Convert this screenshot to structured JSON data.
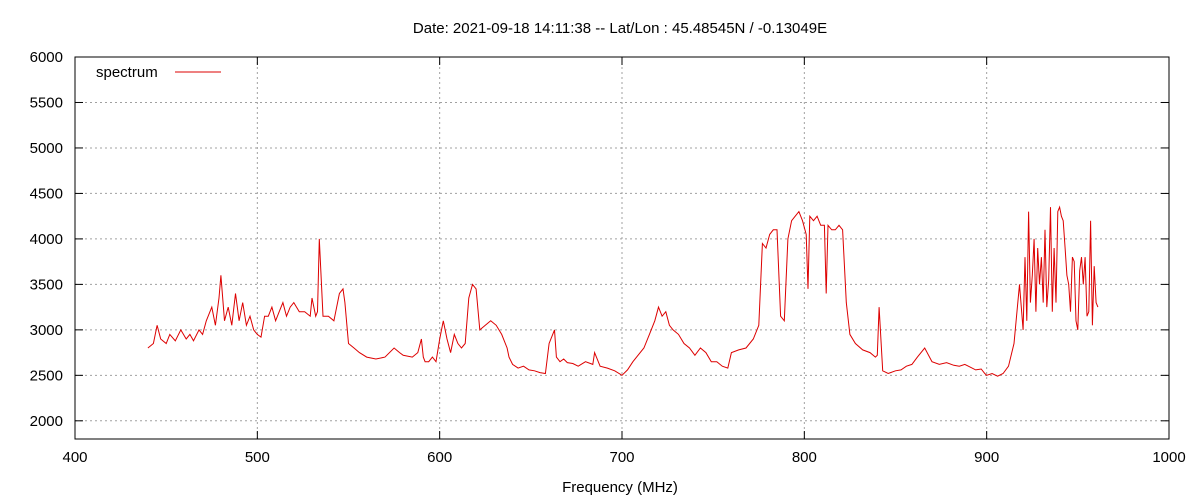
{
  "chart_data": {
    "type": "line",
    "title": "Date: 2021-09-18 14:11:38  --  Lat/Lon : 45.48545N / -0.13049E",
    "xlabel": "Frequency (MHz)",
    "ylabel": "",
    "xlim": [
      400,
      1000
    ],
    "ylim": [
      1800,
      6000
    ],
    "xticks": [
      400,
      500,
      600,
      700,
      800,
      900,
      1000
    ],
    "yticks": [
      2000,
      2500,
      3000,
      3500,
      4000,
      4500,
      5000,
      5500,
      6000
    ],
    "grid": true,
    "legend_position": "top-left",
    "series": [
      {
        "name": "spectrum",
        "color": "#dd0000",
        "x": [
          440,
          443,
          445,
          447,
          450,
          452,
          455,
          458,
          461,
          463,
          465,
          468,
          470,
          472,
          475,
          477,
          479,
          480,
          482,
          484,
          486,
          488,
          490,
          492,
          494,
          496,
          498,
          500,
          502,
          504,
          506,
          508,
          510,
          512,
          514,
          516,
          518,
          520,
          523,
          526,
          529,
          530,
          532,
          533,
          534,
          536,
          539,
          542,
          545,
          547,
          548,
          550,
          553,
          556,
          560,
          565,
          570,
          575,
          578,
          580,
          585,
          588,
          590,
          591,
          592,
          594,
          596,
          598,
          600,
          602,
          604,
          606,
          608,
          610,
          612,
          614,
          616,
          618,
          620,
          622,
          625,
          628,
          631,
          634,
          637,
          638,
          640,
          643,
          646,
          649,
          652,
          655,
          658,
          660,
          663,
          664,
          666,
          668,
          670,
          673,
          676,
          680,
          684,
          685,
          688,
          692,
          696,
          700,
          703,
          706,
          708,
          712,
          715,
          718,
          720,
          722,
          724,
          726,
          728,
          731,
          734,
          737,
          740,
          743,
          746,
          749,
          752,
          755,
          758,
          760,
          764,
          768,
          772,
          775,
          777,
          779,
          781,
          783,
          785,
          787,
          789,
          791,
          793,
          795,
          797,
          799,
          801,
          802,
          803,
          805,
          807,
          809,
          811,
          812,
          813,
          815,
          817,
          819,
          821,
          823,
          825,
          828,
          832,
          836,
          839,
          840,
          841,
          843,
          846,
          850,
          853,
          856,
          859,
          862,
          866,
          870,
          874,
          878,
          882,
          885,
          888,
          890,
          894,
          897,
          899,
          900,
          903,
          906,
          909,
          912,
          915,
          918,
          920,
          921,
          922,
          923,
          924,
          925,
          926,
          927,
          928,
          929,
          930,
          931,
          932,
          933,
          934,
          935,
          936,
          937,
          938,
          939,
          940,
          941,
          942,
          943,
          944,
          945,
          946,
          947,
          948,
          949,
          950,
          951,
          952,
          953,
          954,
          955,
          956,
          957,
          958,
          959,
          960,
          961
        ],
        "values": [
          2800,
          2850,
          3050,
          2900,
          2850,
          2950,
          2880,
          3000,
          2900,
          2950,
          2880,
          3000,
          2950,
          3100,
          3250,
          3050,
          3350,
          3600,
          3100,
          3250,
          3050,
          3400,
          3100,
          3300,
          3050,
          3150,
          3000,
          2950,
          2920,
          3150,
          3150,
          3250,
          3100,
          3200,
          3300,
          3150,
          3250,
          3300,
          3200,
          3200,
          3150,
          3350,
          3150,
          3200,
          4000,
          3150,
          3150,
          3100,
          3400,
          3450,
          3300,
          2850,
          2800,
          2750,
          2700,
          2680,
          2700,
          2800,
          2750,
          2720,
          2700,
          2750,
          2900,
          2700,
          2650,
          2650,
          2700,
          2650,
          2900,
          3100,
          2900,
          2750,
          2950,
          2850,
          2800,
          2850,
          3350,
          3500,
          3450,
          3000,
          3050,
          3100,
          3050,
          2950,
          2800,
          2700,
          2620,
          2580,
          2600,
          2560,
          2550,
          2530,
          2520,
          2850,
          3000,
          2700,
          2650,
          2680,
          2640,
          2630,
          2600,
          2650,
          2620,
          2750,
          2600,
          2580,
          2550,
          2500,
          2560,
          2650,
          2700,
          2800,
          2950,
          3100,
          3250,
          3150,
          3200,
          3050,
          3000,
          2950,
          2850,
          2800,
          2720,
          2800,
          2750,
          2650,
          2650,
          2600,
          2580,
          2750,
          2780,
          2800,
          2900,
          3050,
          3950,
          3900,
          4050,
          4100,
          4100,
          3150,
          3100,
          4000,
          4200,
          4250,
          4300,
          4200,
          4050,
          3450,
          4250,
          4200,
          4250,
          4150,
          4150,
          3400,
          4150,
          4100,
          4100,
          4150,
          4100,
          3300,
          2950,
          2850,
          2780,
          2750,
          2700,
          2720,
          3250,
          2550,
          2520,
          2550,
          2560,
          2600,
          2620,
          2700,
          2800,
          2650,
          2620,
          2640,
          2610,
          2600,
          2620,
          2600,
          2560,
          2570,
          2520,
          2500,
          2520,
          2490,
          2520,
          2600,
          2850,
          3500,
          3000,
          3800,
          3100,
          4300,
          3300,
          3600,
          4000,
          3200,
          3900,
          3500,
          3800,
          3300,
          4100,
          3250,
          3550,
          4350,
          3200,
          3900,
          3300,
          4300,
          4350,
          4250,
          4200,
          3900,
          3600,
          3500,
          3200,
          3800,
          3750,
          3100,
          3000,
          3650,
          3800,
          3500,
          3800,
          3150,
          3200,
          4200,
          3050,
          3700,
          3300,
          3250
        ]
      }
    ]
  }
}
